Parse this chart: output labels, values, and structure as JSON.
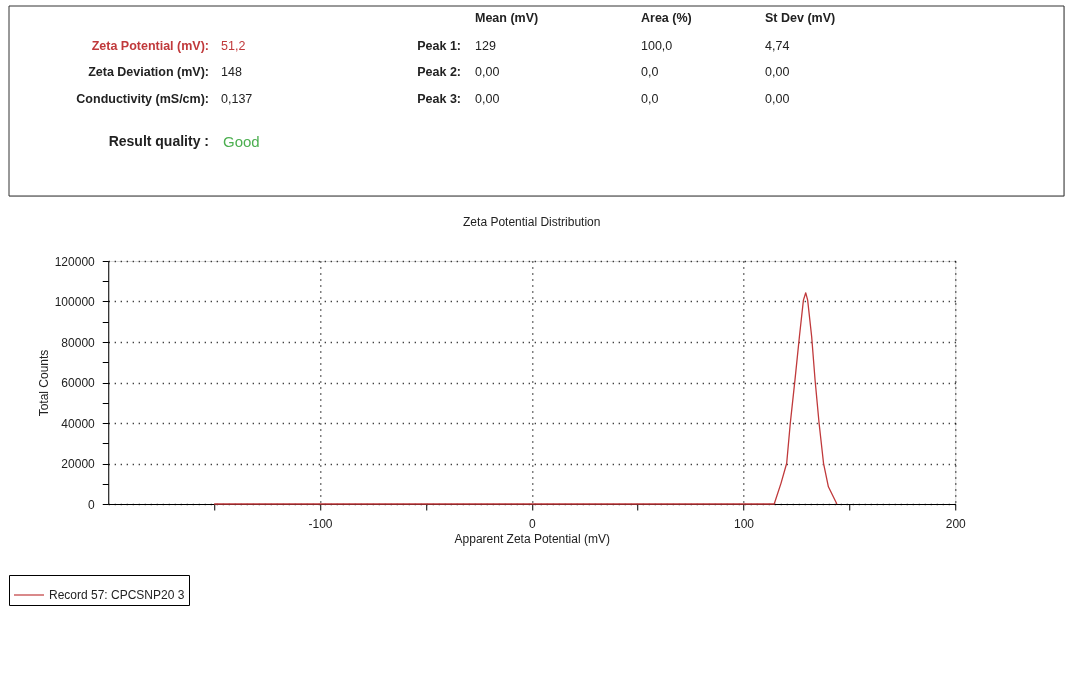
{
  "chart_data": [
    {
      "type": "other",
      "annotations": [
        "Mean (mV)",
        "Area (%)",
        "St Dev (mV)",
        "Zeta Potential (mV):",
        "51,2",
        "Peak 1:",
        "129",
        "100,0",
        "4,74",
        "Zeta Deviation (mV):",
        "148",
        "Peak 2:",
        "0,00",
        "0,0",
        "0,00",
        "Conductivity (mS/cm):",
        "0,137",
        "Peak 3:",
        "0,00",
        "0,0",
        "0,00",
        "Result quality :",
        "Good"
      ],
      "colors": [
        "#222222",
        "#222222",
        "#222222",
        "#c0393b",
        "#c0393b",
        "#222222",
        "#222222",
        "#222222",
        "#222222",
        "#222222",
        "#222222",
        "#222222",
        "#222222",
        "#222222",
        "#222222",
        "#222222",
        "#222222",
        "#222222",
        "#222222",
        "#222222",
        "#222222",
        "#222222",
        "#4caf50"
      ]
    },
    {
      "type": "line",
      "title": "Zeta Potential Distribution",
      "xlabel": "Apparent Zeta Potential (mV)",
      "ylabel": "Total Counts",
      "series": [
        {
          "name": "Record 57: CPCSNP20 3",
          "color": "#c0393b",
          "x": [
            -150,
            114.5,
            117.7,
            120.4,
            122.1,
            124.3,
            126.4,
            128.3,
            129.4,
            130.3,
            132.2,
            133.8,
            135.7,
            137.8,
            140.1,
            144.1
          ],
          "values": [
            0,
            0,
            10200,
            20100,
            39900,
            61200,
            82600,
            100700,
            104300,
            100700,
            82600,
            61200,
            39900,
            20100,
            8500,
            0
          ]
        }
      ],
      "xlim": [
        -200,
        200
      ],
      "xticks": [
        {
          "value": -150,
          "label": null
        },
        -100,
        {
          "value": -50,
          "label": null
        },
        0,
        {
          "value": 50,
          "label": null
        },
        100,
        {
          "value": 150,
          "label": null
        },
        200
      ],
      "ylim": [
        0,
        120000
      ],
      "yticks": [
        0,
        {
          "value": 10000,
          "label": null
        },
        20000,
        {
          "value": 30000,
          "label": null
        },
        40000,
        {
          "value": 50000,
          "label": null
        },
        60000,
        {
          "value": 70000,
          "label": null
        },
        80000,
        {
          "value": 90000,
          "label": null
        },
        100000,
        {
          "value": 110000,
          "label": null
        },
        120000
      ],
      "grid": true,
      "legend": "bottom",
      "marker": "none",
      "line_style": "solid"
    }
  ]
}
